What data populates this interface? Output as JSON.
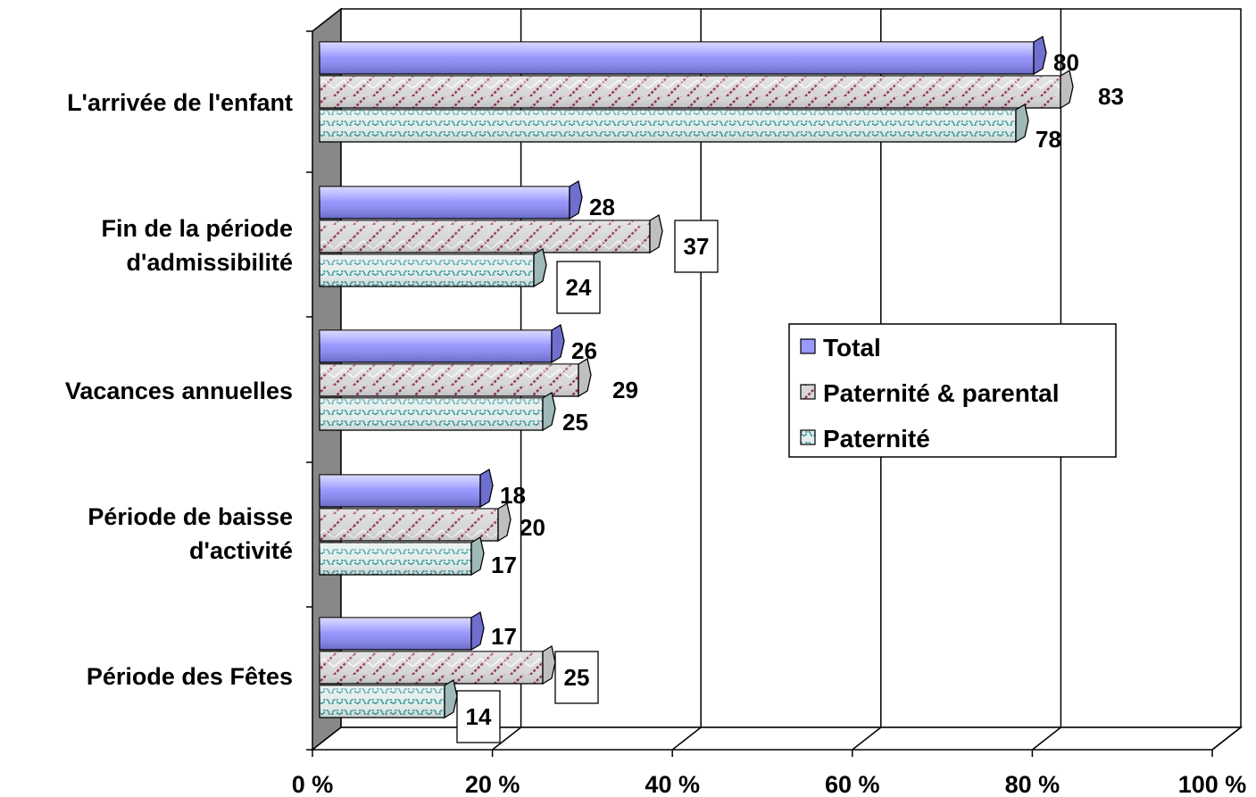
{
  "chart_data": {
    "type": "bar",
    "orientation": "horizontal",
    "categories": [
      [
        "L'arrivée de l'enfant"
      ],
      [
        "Fin de la période",
        "d'admissibilité"
      ],
      [
        "Vacances annuelles"
      ],
      [
        "Période de baisse",
        "d'activité"
      ],
      [
        "Période des Fêtes"
      ]
    ],
    "series": [
      {
        "name": "Total",
        "values": [
          80,
          28,
          26,
          18,
          17
        ],
        "color": "#9999ff",
        "pattern": "solid"
      },
      {
        "name": "Paternité & parental",
        "values": [
          83,
          37,
          29,
          20,
          25
        ],
        "color": "#993366",
        "pattern": "zigzag"
      },
      {
        "name": "Paternité",
        "values": [
          78,
          24,
          25,
          17,
          14
        ],
        "color": "#339999",
        "pattern": "wave"
      }
    ],
    "value_labels": [
      [
        "80",
        "28",
        "26",
        "18",
        "17"
      ],
      [
        "83",
        "37",
        "29",
        "20",
        "25"
      ],
      [
        "78",
        "24",
        "25",
        "17",
        "14"
      ]
    ],
    "boxed_labels": [
      [],
      [
        1,
        4
      ],
      [
        1,
        4
      ]
    ],
    "x_ticks": [
      "0 %",
      "20 %",
      "40 %",
      "60 %",
      "80 %",
      "100 %"
    ],
    "xlim": [
      0,
      100
    ],
    "grid": true,
    "legend_position": "right-middle",
    "style": "3d"
  }
}
